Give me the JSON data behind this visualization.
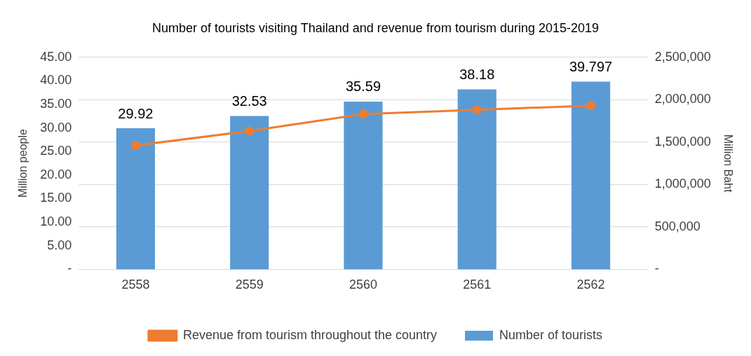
{
  "chart_data": {
    "type": "bar",
    "title": "Number of tourists visiting Thailand and revenue from tourism during 2015-2019",
    "categories": [
      "2558",
      "2559",
      "2560",
      "2561",
      "2562"
    ],
    "ylabel": "Million people",
    "y2label": "Million Baht",
    "series": [
      {
        "name": "Number of tourists",
        "color": "#5b9bd5",
        "values": [
          29.92,
          32.53,
          35.59,
          38.18,
          39.797
        ],
        "value_labels": [
          "29.92",
          "32.53",
          "35.59",
          "38.18",
          "39.797"
        ]
      },
      {
        "name": "Revenue from tourism throughout the country",
        "type": "line",
        "axis": "y2",
        "color": "#ed7d31",
        "marker": "circle",
        "values": [
          1460000,
          1630000,
          1830000,
          1880000,
          1930000
        ]
      }
    ],
    "ylim": [
      0,
      45
    ],
    "yticks": [
      {
        "value": 0,
        "label": "-"
      },
      {
        "value": 5,
        "label": "5.00"
      },
      {
        "value": 10,
        "label": "10.00"
      },
      {
        "value": 15,
        "label": "15.00"
      },
      {
        "value": 20,
        "label": "20.00"
      },
      {
        "value": 25,
        "label": "25.00"
      },
      {
        "value": 30,
        "label": "30.00"
      },
      {
        "value": 35,
        "label": "35.00"
      },
      {
        "value": 40,
        "label": "40.00"
      },
      {
        "value": 45,
        "label": "45.00"
      }
    ],
    "y2lim": [
      0,
      2500000
    ],
    "y2ticks": [
      {
        "value": 0,
        "label": "-"
      },
      {
        "value": 500000,
        "label": "500,000"
      },
      {
        "value": 1000000,
        "label": "1,000,000"
      },
      {
        "value": 1500000,
        "label": "1,500,000"
      },
      {
        "value": 2000000,
        "label": "2,000,000"
      },
      {
        "value": 2500000,
        "label": "2,500,000"
      }
    ],
    "grid": "y",
    "legend": "bottom"
  }
}
